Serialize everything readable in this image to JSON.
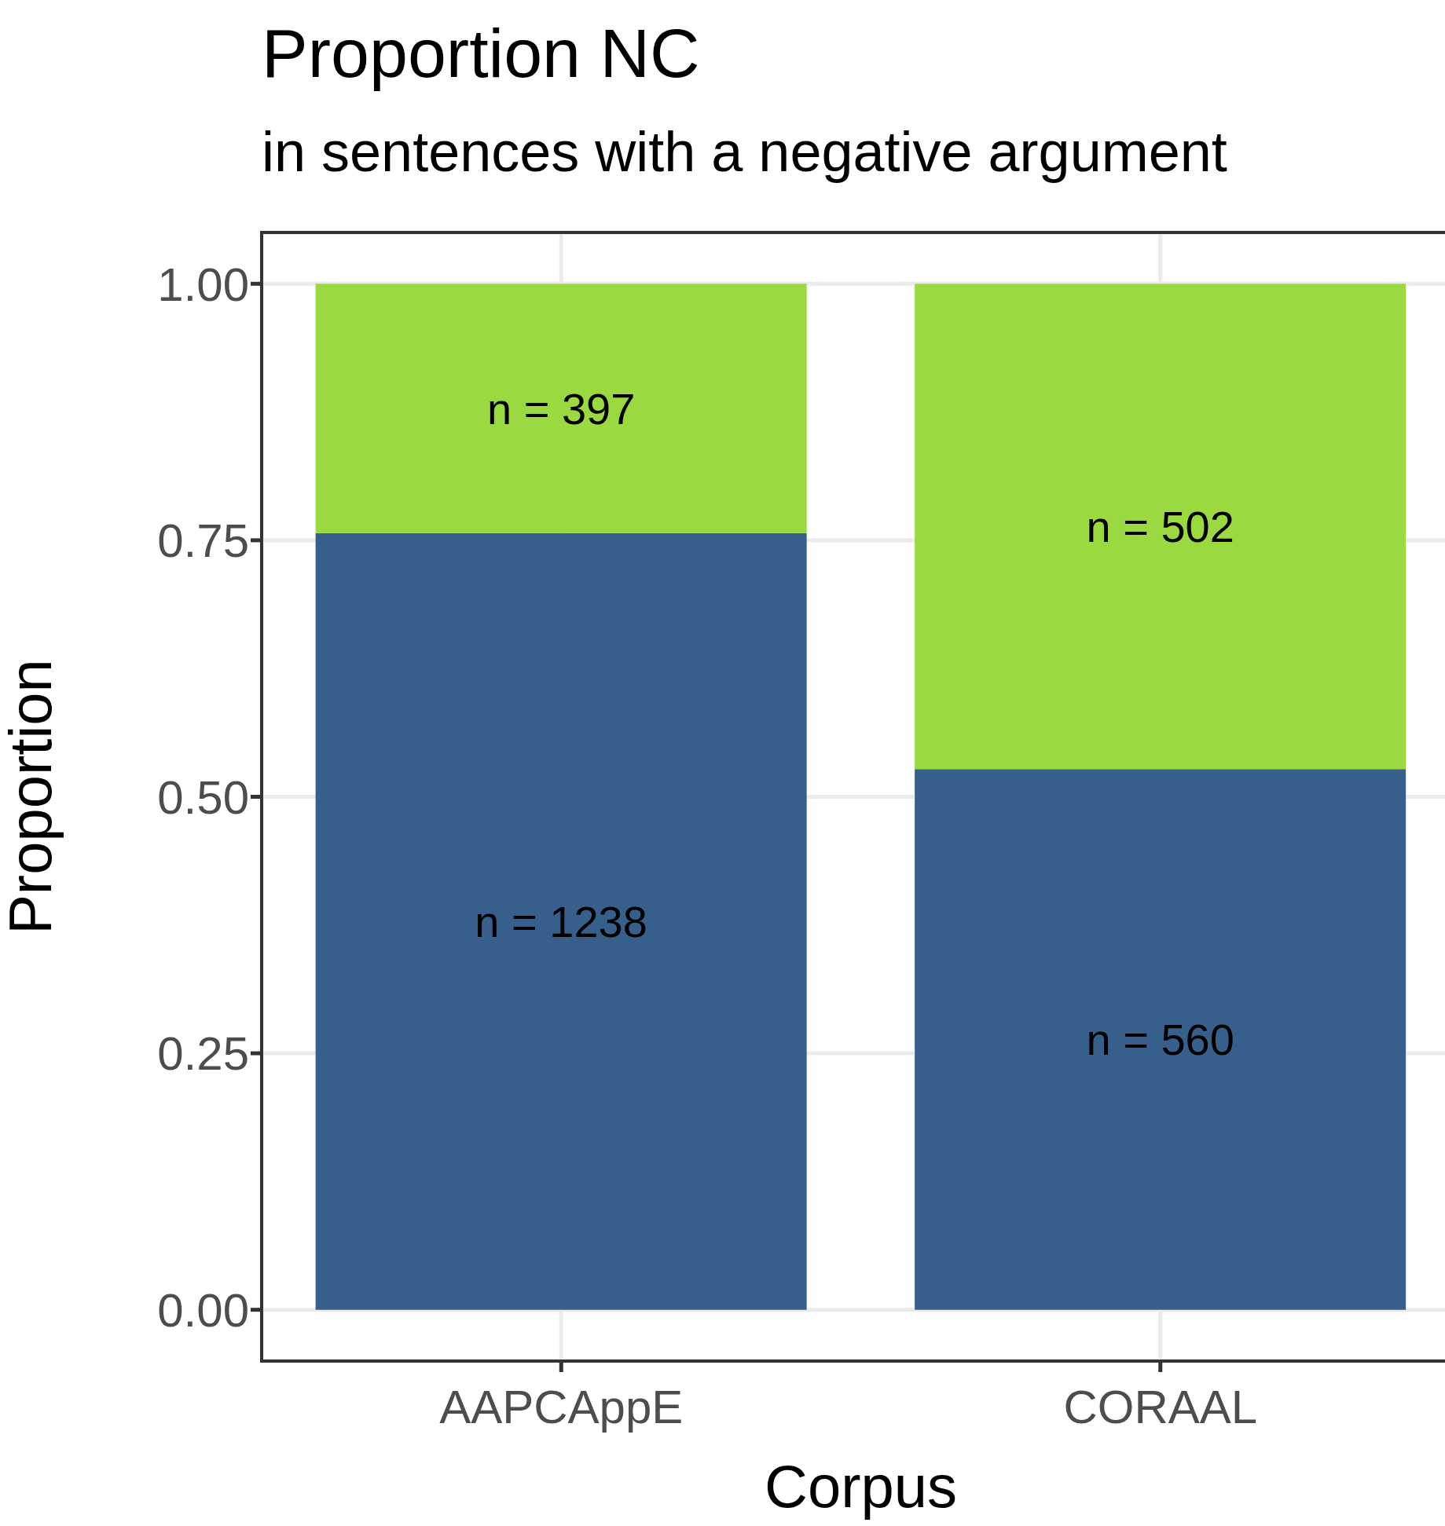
{
  "chart_data": {
    "type": "bar",
    "title": "Proportion NC",
    "subtitle": "in sentences with a negative argument",
    "xlabel": "Corpus",
    "ylabel": "Proportion",
    "categories": [
      "AAPCAppE",
      "CORAAL"
    ],
    "series": [
      {
        "color": "#36608b",
        "values": [
          0.757,
          0.527
        ]
      },
      {
        "color": "#9bd940",
        "values": [
          0.243,
          0.473
        ]
      }
    ],
    "annotations": [
      "n = 1238",
      "n = 560",
      "n = 397",
      "n = 502"
    ],
    "stacked": true,
    "ylim": [
      -0.05,
      1.05
    ],
    "yticks": [
      {
        "value": 0,
        "label": "0.00"
      },
      {
        "value": 0.25,
        "label": "0.25"
      },
      {
        "value": 0.5,
        "label": "0.50"
      },
      {
        "value": 0.75,
        "label": "0.75"
      },
      {
        "value": 1,
        "label": "1.00"
      }
    ],
    "grid": true,
    "legend": false
  }
}
